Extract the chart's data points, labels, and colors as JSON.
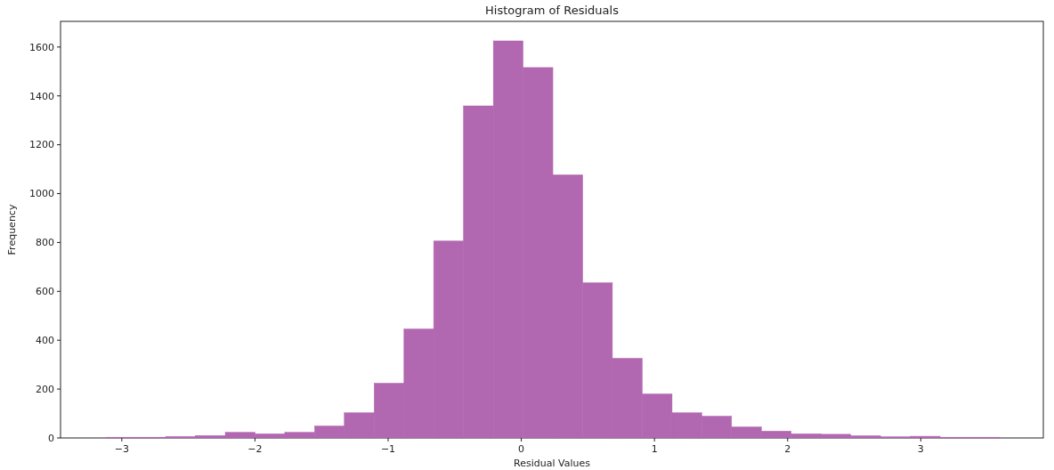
{
  "chart_data": {
    "type": "histogram",
    "title": "Histogram of Residuals",
    "xlabel": "Residual Values",
    "ylabel": "Frequency",
    "bins": [
      -3.118,
      -2.894,
      -2.671,
      -2.447,
      -2.223,
      -2.0,
      -1.776,
      -1.552,
      -1.329,
      -1.105,
      -0.881,
      -0.658,
      -0.434,
      -0.21,
      0.013,
      0.237,
      0.461,
      0.684,
      0.908,
      1.132,
      1.355,
      1.579,
      1.803,
      2.026,
      2.25,
      2.474,
      2.697,
      2.921,
      3.145,
      3.368,
      3.592
    ],
    "values": [
      3,
      3,
      6,
      10,
      23,
      17,
      23,
      49,
      103,
      224,
      446,
      806,
      1359,
      1625,
      1516,
      1077,
      635,
      326,
      180,
      103,
      89,
      45,
      28,
      17,
      15,
      9,
      5,
      7,
      3,
      3
    ],
    "color": "#b267b1",
    "xlim": [
      -3.46,
      3.92
    ],
    "ylim": [
      0,
      1705
    ],
    "xticks": [
      {
        "value": -3,
        "label": "−3"
      },
      {
        "value": -2,
        "label": "−2"
      },
      {
        "value": -1,
        "label": "−1"
      },
      0,
      1,
      2,
      3
    ],
    "yticks": [
      0,
      200,
      400,
      600,
      800,
      1000,
      1200,
      1400,
      1600
    ],
    "grid": false
  }
}
